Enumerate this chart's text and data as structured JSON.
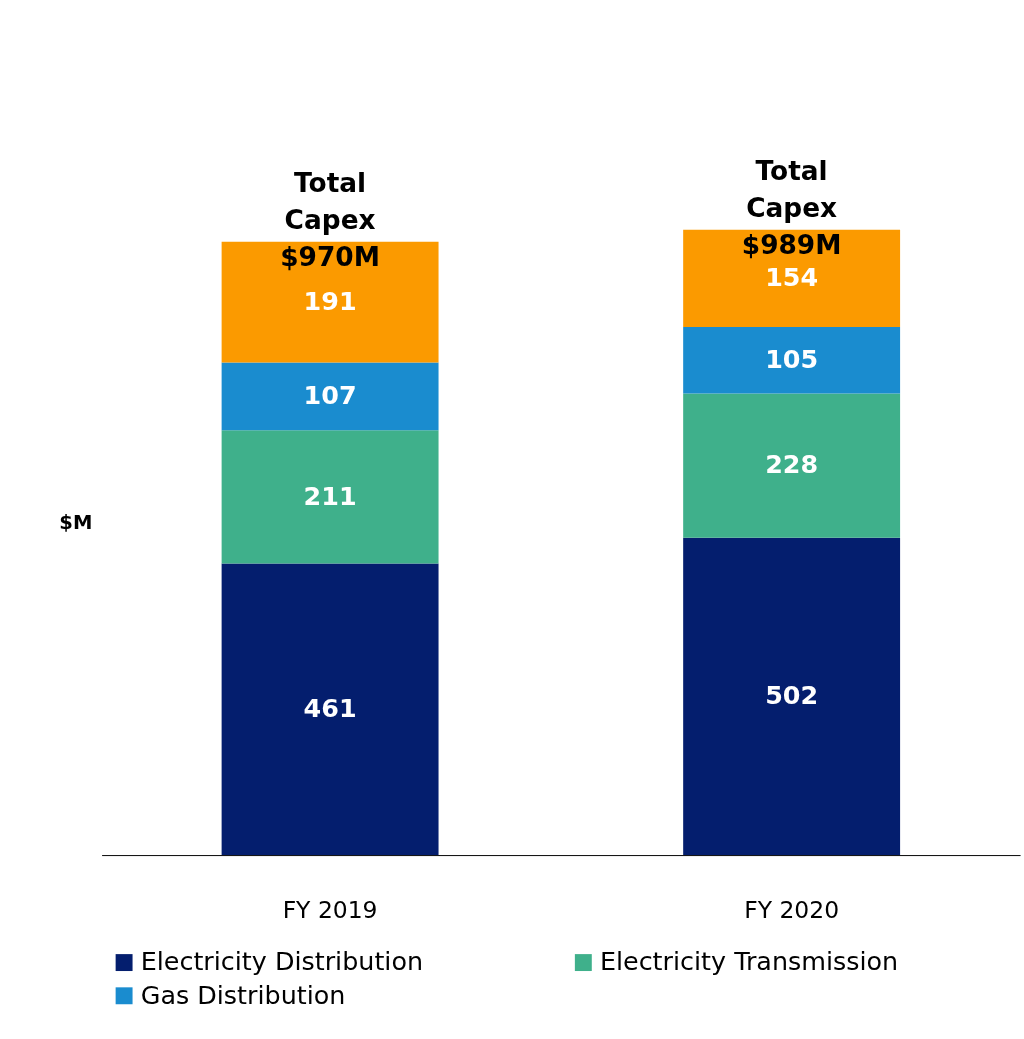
{
  "chart_data": {
    "type": "bar",
    "stacked": true,
    "ylabel": "$M",
    "categories": [
      "FY 2019",
      "FY 2020"
    ],
    "series": [
      {
        "name": "Electricity Distribution",
        "color": "#041e6e",
        "values": [
          461,
          502
        ]
      },
      {
        "name": "Electricity Transmission",
        "color": "#3fb08b",
        "values": [
          211,
          228
        ]
      },
      {
        "name": "Gas Distribution",
        "color": "#1a8ccf",
        "values": [
          107,
          105
        ]
      },
      {
        "color": "#fb9a00",
        "values": [
          191,
          154
        ]
      }
    ],
    "data_labels": true,
    "totals": [
      "Total\nCapex\n$970M",
      "Total\nCapex\n$989M"
    ],
    "legend": "bottom",
    "grid": false
  }
}
